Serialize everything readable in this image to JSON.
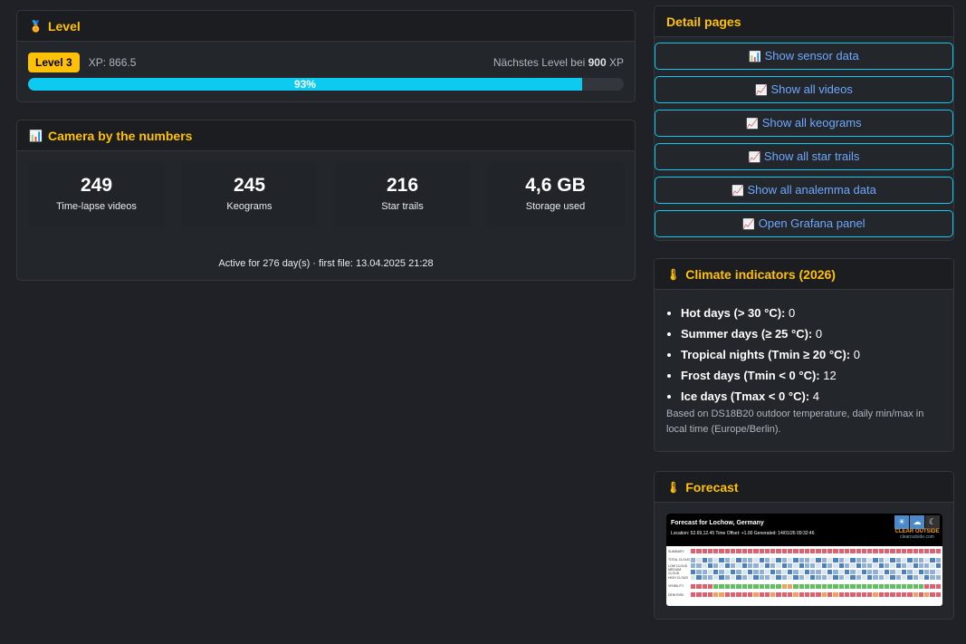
{
  "level": {
    "title": "Level",
    "icon": "medal-icon",
    "badge": "Level 3",
    "xp": "XP: 866.5",
    "next_prefix": "Nächstes Level bei ",
    "next_value": "900",
    "next_suffix": " XP",
    "progress_percent": 93,
    "progress_label": "93%"
  },
  "camera": {
    "title": "Camera by the numbers",
    "icon": "bar-chart-icon",
    "stats": [
      {
        "value": "249",
        "label": "Time-lapse videos"
      },
      {
        "value": "245",
        "label": "Keograms"
      },
      {
        "value": "216",
        "label": "Star trails"
      },
      {
        "value": "4,6 GB",
        "label": "Storage used"
      }
    ],
    "active": "Active for 276 day(s) · first file: 13.04.2025 21:28"
  },
  "detail": {
    "title": "Detail pages",
    "buttons": [
      {
        "icon": "📊",
        "label": "Show sensor data"
      },
      {
        "icon": "📈",
        "label": "Show all videos"
      },
      {
        "icon": "📈",
        "label": "Show all keograms"
      },
      {
        "icon": "📈",
        "label": "Show all star trails"
      },
      {
        "icon": "📈",
        "label": "Show all analemma data"
      },
      {
        "icon": "📈",
        "label": "Open Grafana panel"
      }
    ]
  },
  "climate": {
    "title": "Climate indicators (2026)",
    "icon": "thermometer-icon",
    "items": [
      {
        "label": "Hot days (> 30 °C):",
        "value": " 0"
      },
      {
        "label": "Summer days (≥ 25 °C):",
        "value": " 0"
      },
      {
        "label": "Tropical nights (Tmin ≥ 20 °C):",
        "value": " 0"
      },
      {
        "label": "Frost days (Tmin < 0 °C):",
        "value": " 12"
      },
      {
        "label": "Ice days (Tmax < 0 °C):",
        "value": " 4"
      }
    ],
    "note": "Based on DS18B20 outdoor temperature, daily min/max in local time (Europe/Berlin)."
  },
  "forecast": {
    "title": "Forecast",
    "icon": "thermometer-icon",
    "image": {
      "heading": "Forecast for Lochow, Germany",
      "sub": "Location: 52.69,12.45     Time Offset: +1.00     Generated: 14/01/26 09:32:46",
      "brand": "CLEAR OUTSIDE",
      "url": "clearoutside.com",
      "rows": [
        "SUMMARY",
        "TOTAL CLOUD",
        "LOW CLOUD",
        "MEDIUM CLOUD",
        "HIGH CLOUD",
        "VISIBILITY",
        "DEW RISK"
      ]
    }
  }
}
